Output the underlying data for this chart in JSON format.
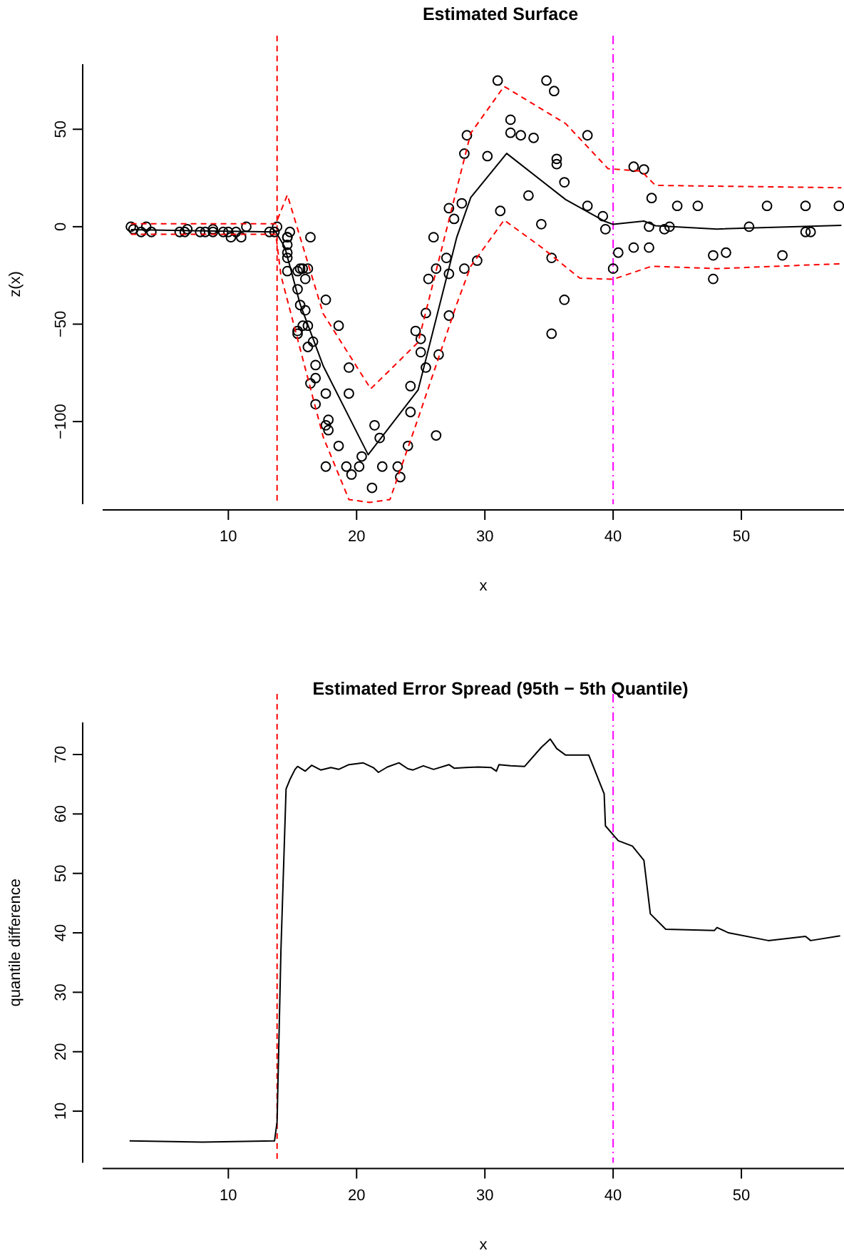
{
  "chart_data": [
    {
      "type": "scatter",
      "title": "Estimated Surface",
      "xlabel": "x",
      "ylabel": "z(x)",
      "xlim": [
        0.2,
        58.0
      ],
      "ylim": [
        -142.4,
        83.4
      ],
      "xticks": [
        10,
        20,
        30,
        40,
        50
      ],
      "yticks": [
        -100,
        -50,
        0,
        50
      ],
      "grid": false,
      "ref_lines": [
        {
          "axis": "x",
          "value": 13.8,
          "color": "#ff0000",
          "line_style": "dashed"
        },
        {
          "axis": "x",
          "value": 40,
          "color": "#ff00ff",
          "line_style": "dashdot"
        }
      ],
      "series": [
        {
          "marker": "circle",
          "color": "#000000",
          "x": [
            2.4,
            2.6,
            3.2,
            3.6,
            4.0,
            6.2,
            6.6,
            6.8,
            7.8,
            8.2,
            8.8,
            8.8,
            9.6,
            10.0,
            10.2,
            10.6,
            11.0,
            11.4,
            13.2,
            13.6,
            13.8,
            14.6,
            14.6,
            14.6,
            14.6,
            14.6,
            14.6,
            14.8,
            15.4,
            15.4,
            15.4,
            15.4,
            15.6,
            15.6,
            15.8,
            15.8,
            16.0,
            16.0,
            16.2,
            16.2,
            16.2,
            16.4,
            16.4,
            16.6,
            16.8,
            16.8,
            16.8,
            17.6,
            17.6,
            17.6,
            17.6,
            17.8,
            17.8,
            18.6,
            18.6,
            19.2,
            19.4,
            19.4,
            19.6,
            20.2,
            20.4,
            21.2,
            21.4,
            21.8,
            22.0,
            23.2,
            23.4,
            24.0,
            24.2,
            24.2,
            24.6,
            25.0,
            25.0,
            25.4,
            25.4,
            25.6,
            26.0,
            26.2,
            26.2,
            26.4,
            27.0,
            27.2,
            27.2,
            27.2,
            27.6,
            28.2,
            28.4,
            28.4,
            28.6,
            29.4,
            30.2,
            31.0,
            31.2,
            32.0,
            32.0,
            32.8,
            33.4,
            33.8,
            34.4,
            34.8,
            35.2,
            35.2,
            35.4,
            35.6,
            35.6,
            36.2,
            36.2,
            38.0,
            38.0,
            39.2,
            39.4,
            40.0,
            40.4,
            41.6,
            41.6,
            42.4,
            42.8,
            42.8,
            43.0,
            44.0,
            44.4,
            45.0,
            46.6,
            47.8,
            47.8,
            48.8,
            50.6,
            52.0,
            53.2,
            55.0,
            55.0,
            55.4,
            57.6
          ],
          "values": [
            0.0,
            -1.3,
            -2.7,
            0.0,
            -2.7,
            -2.7,
            -2.7,
            -1.3,
            -2.7,
            -2.7,
            -1.3,
            -2.7,
            -2.7,
            -2.7,
            -5.4,
            -2.7,
            -5.4,
            0.0,
            -2.7,
            -2.7,
            0.0,
            -13.3,
            -5.4,
            -5.4,
            -9.3,
            -16.0,
            -22.8,
            -2.7,
            -22.8,
            -32.1,
            -53.5,
            -54.9,
            -40.2,
            -21.5,
            -21.5,
            -50.8,
            -42.9,
            -26.8,
            -21.5,
            -50.8,
            -61.7,
            -5.4,
            -80.4,
            -59.0,
            -71.0,
            -91.1,
            -77.7,
            -37.5,
            -85.6,
            -123.1,
            -101.9,
            -99.1,
            -104.4,
            -112.5,
            -50.8,
            -123.1,
            -85.6,
            -72.3,
            -127.2,
            -123.1,
            -117.9,
            -134.0,
            -101.9,
            -108.4,
            -123.1,
            -123.1,
            -128.5,
            -112.5,
            -95.1,
            -81.8,
            -53.5,
            -64.4,
            -57.6,
            -72.3,
            -44.3,
            -26.8,
            -5.4,
            -107.1,
            -21.5,
            -65.6,
            -16.0,
            -45.6,
            -24.2,
            9.5,
            4.0,
            12.0,
            -21.5,
            37.5,
            46.9,
            -17.4,
            36.2,
            75.0,
            8.1,
            54.9,
            48.2,
            46.9,
            16.0,
            45.6,
            1.3,
            75.0,
            -16.0,
            -54.9,
            69.6,
            34.8,
            32.1,
            -37.5,
            22.8,
            46.9,
            10.7,
            5.4,
            -1.3,
            -21.5,
            -13.3,
            30.8,
            -10.7,
            29.4,
            0.0,
            -10.7,
            14.7,
            -1.3,
            0.0,
            10.7,
            10.7,
            -26.8,
            -14.7,
            -13.3,
            0.0,
            10.7,
            -14.7,
            -2.7,
            10.7,
            -2.7,
            10.7
          ]
        },
        {
          "type": "line",
          "color": "#000000",
          "line_style": "solid",
          "x": [
            2.4,
            13.7,
            14.4,
            15.6,
            17.4,
            20.9,
            24.8,
            27.8,
            28.9,
            31.7,
            36.3,
            39.3,
            40,
            42.4,
            43.3,
            48.1,
            57.8
          ],
          "values": [
            -1.5,
            -2.7,
            -10.5,
            -39.8,
            -71.5,
            -117,
            -83.7,
            -5.6,
            15,
            37.6,
            13.9,
            2.9,
            1.2,
            2.9,
            0.5,
            -1.2,
            0.7
          ]
        },
        {
          "type": "line",
          "color": "#ff0000",
          "line_style": "dashed",
          "x": [
            2.4,
            13.7,
            14.6,
            17.4,
            21.1,
            24.8,
            28.9,
            31.5,
            36.3,
            39.6,
            42.2,
            43.3,
            57.8
          ],
          "values": [
            1.5,
            1.5,
            16.3,
            -44.7,
            -83.2,
            -59.3,
            48,
            72,
            52.9,
            29.8,
            28.5,
            21.2,
            20
          ]
        },
        {
          "type": "line",
          "color": "#ff0000",
          "line_style": "dashed",
          "x": [
            2.4,
            13.7,
            14.1,
            17.4,
            19.4,
            21,
            22.6,
            24.8,
            27.8,
            28.9,
            31.5,
            34.4,
            37.4,
            40,
            43,
            48.1,
            57.8
          ],
          "values": [
            -3.9,
            -3.9,
            -25,
            -108,
            -140,
            -141.5,
            -140,
            -98.3,
            -39.8,
            -20.3,
            3.4,
            -10.5,
            -26.4,
            -27,
            -20.3,
            -21.5,
            -19
          ]
        }
      ]
    },
    {
      "type": "line",
      "title": "Estimated Error Spread (95th − 5th Quantile)",
      "xlabel": "x",
      "ylabel": "quantile difference",
      "xlim": [
        0.2,
        58.0
      ],
      "ylim": [
        1.3,
        75.4
      ],
      "xticks": [
        10,
        20,
        30,
        40,
        50
      ],
      "yticks": [
        10,
        20,
        30,
        40,
        50,
        60,
        70
      ],
      "grid": false,
      "ref_lines": [
        {
          "axis": "x",
          "value": 13.8,
          "color": "#ff0000",
          "line_style": "dashed"
        },
        {
          "axis": "x",
          "value": 40,
          "color": "#ff00ff",
          "line_style": "dashdot"
        }
      ],
      "series": [
        {
          "color": "#000000",
          "line_style": "solid",
          "x": [
            2.3,
            8,
            13.6,
            13.8,
            14.1,
            14.5,
            14.8,
            15.2,
            15.4,
            16.0,
            16.5,
            17.2,
            18.0,
            18.6,
            19.4,
            20.5,
            21.3,
            21.7,
            22.4,
            23.3,
            24.0,
            24.4,
            25.2,
            26.0,
            27.2,
            27.6,
            28.5,
            29.5,
            30.5,
            30.9,
            31.1,
            32.0,
            33.1,
            34.4,
            35.1,
            35.6,
            36.3,
            38.1,
            39.3,
            39.4,
            40.4,
            41.5,
            42.4,
            42.9,
            44.1,
            47.9,
            48.1,
            49.0,
            52.1,
            55.0,
            55.4,
            57.7
          ],
          "values": [
            5.0,
            4.8,
            5.0,
            8.2,
            37,
            64.2,
            65.8,
            67.5,
            68,
            67.2,
            68.2,
            67.4,
            67.8,
            67.5,
            68.3,
            68.6,
            67.8,
            67.0,
            67.9,
            68.6,
            67.6,
            67.4,
            68.1,
            67.5,
            68.3,
            67.7,
            67.8,
            67.9,
            67.8,
            67.2,
            68.3,
            68.1,
            68.0,
            71.2,
            72.6,
            71,
            69.9,
            69.9,
            63.4,
            58.0,
            55.5,
            54.6,
            52.2,
            43.2,
            40.6,
            40.4,
            40.9,
            40,
            38.7,
            39.4,
            38.7,
            39.5
          ]
        }
      ]
    }
  ]
}
